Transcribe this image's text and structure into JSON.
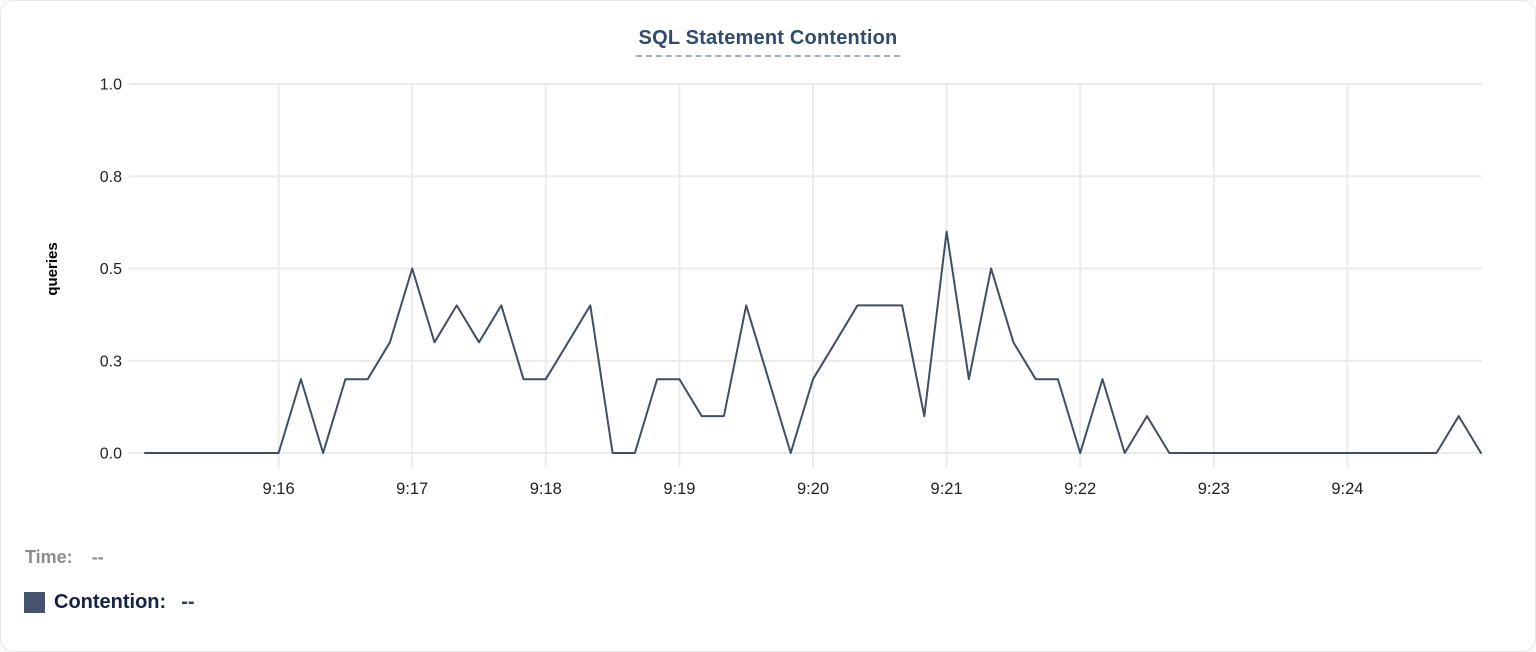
{
  "chart_data": {
    "type": "line",
    "title": "SQL Statement Contention",
    "xlabel": "",
    "ylabel": "queries",
    "ylim": [
      0,
      1.0
    ],
    "grid": true,
    "legend_position": "bottom-left",
    "y_ticks": {
      "values": [
        1.0,
        0.75,
        0.5,
        0.25,
        0.0
      ],
      "labels": [
        "1.0",
        "0.8",
        "0.5",
        "0.3",
        "0.0"
      ]
    },
    "x_ticks": {
      "labels": [
        "9:16",
        "9:17",
        "9:18",
        "9:19",
        "9:20",
        "9:21",
        "9:22",
        "9:23",
        "9:24"
      ]
    },
    "x_range": [
      "9:15:00",
      "9:25:00"
    ],
    "series": [
      {
        "name": "Contention",
        "color": "#3e4e6b",
        "interval_seconds": 10,
        "times": [
          "9:15:00",
          "9:15:10",
          "9:15:20",
          "9:15:30",
          "9:15:40",
          "9:15:50",
          "9:16:00",
          "9:16:10",
          "9:16:20",
          "9:16:30",
          "9:16:40",
          "9:16:50",
          "9:17:00",
          "9:17:10",
          "9:17:20",
          "9:17:30",
          "9:17:40",
          "9:17:50",
          "9:18:00",
          "9:18:10",
          "9:18:20",
          "9:18:30",
          "9:18:40",
          "9:18:50",
          "9:19:00",
          "9:19:10",
          "9:19:20",
          "9:19:30",
          "9:19:40",
          "9:19:50",
          "9:20:00",
          "9:20:10",
          "9:20:20",
          "9:20:30",
          "9:20:40",
          "9:20:50",
          "9:21:00",
          "9:21:10",
          "9:21:20",
          "9:21:30",
          "9:21:40",
          "9:21:50",
          "9:22:00",
          "9:22:10",
          "9:22:20",
          "9:22:30",
          "9:22:40",
          "9:22:50",
          "9:23:00",
          "9:23:10",
          "9:23:20",
          "9:23:30",
          "9:23:40",
          "9:23:50",
          "9:24:00",
          "9:24:10",
          "9:24:20",
          "9:24:30",
          "9:24:40",
          "9:24:50",
          "9:25:00"
        ],
        "values": [
          0,
          0,
          0,
          0,
          0,
          0,
          0,
          0.2,
          0,
          0.2,
          0.2,
          0.3,
          0.5,
          0.3,
          0.4,
          0.3,
          0.4,
          0.2,
          0.2,
          0.3,
          0.4,
          0,
          0,
          0.2,
          0.2,
          0.1,
          0.1,
          0.4,
          0.2,
          0,
          0.2,
          0.3,
          0.4,
          0.4,
          0.4,
          0.1,
          0.6,
          0.2,
          0.5,
          0.3,
          0.2,
          0.2,
          0,
          0.2,
          0,
          0.1,
          0,
          0,
          0,
          0,
          0,
          0,
          0,
          0,
          0,
          0,
          0,
          0,
          0,
          0.1,
          0
        ]
      }
    ]
  },
  "readout": {
    "time_label": "Time:",
    "time_value": "--",
    "contention_label": "Contention:",
    "contention_value": "--"
  },
  "colors": {
    "title": "#2f4b73",
    "title_underline": "#9fabc9",
    "grid": "#ebebeb",
    "tick_text": "#222222",
    "axis_label": "#000000",
    "line": "#3e4e6b",
    "swatch": "#46536e",
    "time_readout": "#8b8c90",
    "contention_label": "#13224a",
    "contention_value": "#2c3c64"
  }
}
